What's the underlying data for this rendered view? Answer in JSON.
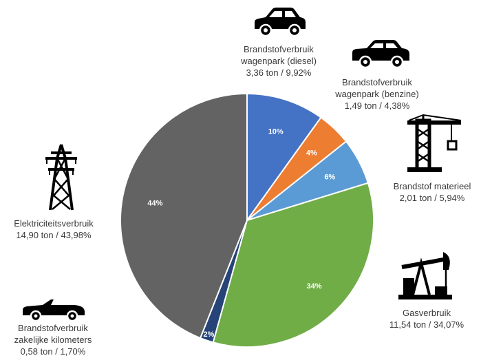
{
  "chart_data": {
    "type": "pie",
    "start_angle_deg": 0,
    "direction": "clockwise",
    "slices": [
      {
        "pct_label": "10%",
        "value": 9.92,
        "color": "#4472C4",
        "name_lines": [
          "Brandstofverbruik",
          "wagenpark (diesel)"
        ],
        "value_text": "3,36 ton / 9,92%",
        "icon": "car-icon"
      },
      {
        "pct_label": "4%",
        "value": 4.38,
        "color": "#ED7D31",
        "name_lines": [
          "Brandstofverbruik",
          "wagenpark (benzine)"
        ],
        "value_text": "1,49 ton / 4,38%",
        "icon": "car-icon"
      },
      {
        "pct_label": "6%",
        "value": 5.94,
        "color": "#5B9BD5",
        "name_lines": [
          "Brandstof materieel"
        ],
        "value_text": "2,01 ton / 5,94%",
        "icon": "crane-icon"
      },
      {
        "pct_label": "34%",
        "value": 34.07,
        "color": "#70AD47",
        "name_lines": [
          "Gasverbruik"
        ],
        "value_text": "11,54 ton / 34,07%",
        "icon": "oil-pump-icon"
      },
      {
        "pct_label": "2%",
        "value": 1.7,
        "color": "#264478",
        "name_lines": [
          "Brandstofverbruik",
          "zakelijke kilometers"
        ],
        "value_text": "0,58 ton / 1,70%",
        "icon": "convertible-car-icon"
      },
      {
        "pct_label": "44%",
        "value": 43.98,
        "color": "#636363",
        "name_lines": [
          "Elektriciteitsverbruik"
        ],
        "value_text": "14,90 ton / 43,98%",
        "icon": "power-pylon-icon"
      }
    ]
  }
}
